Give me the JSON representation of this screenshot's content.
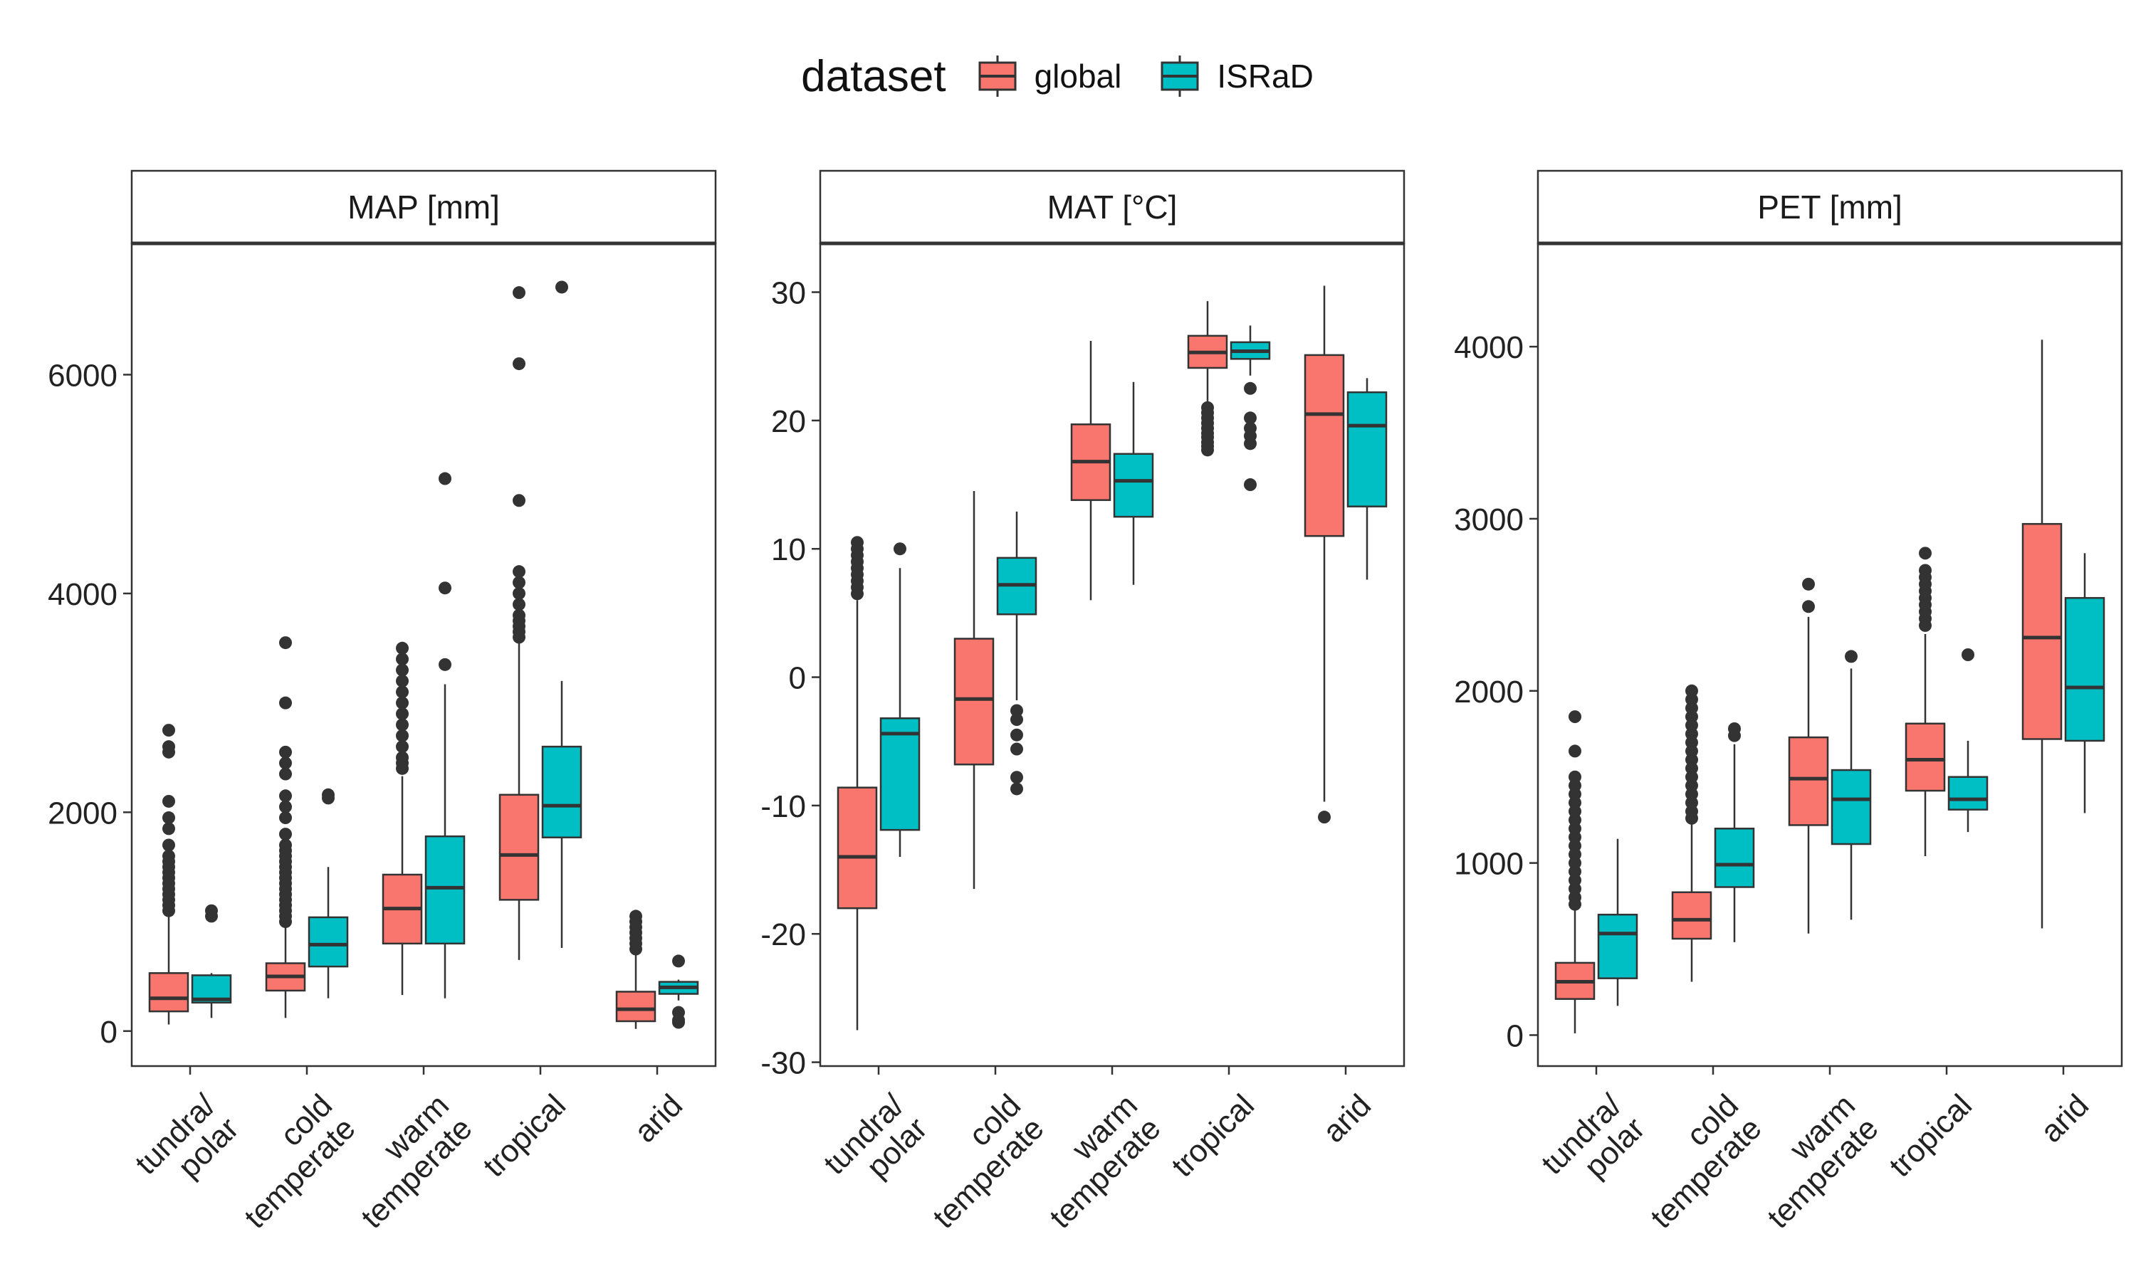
{
  "chart_data": {
    "type": "boxplot",
    "legend": {
      "title": "dataset",
      "position": "top",
      "entries": [
        {
          "name": "global",
          "color": "#F8766D"
        },
        {
          "name": "ISRaD",
          "color": "#00BFC4"
        }
      ]
    },
    "categories": [
      {
        "id": "tundra_polar",
        "lines": [
          "tundra/",
          "polar"
        ]
      },
      {
        "id": "cold_temperate",
        "lines": [
          "cold",
          "temperate"
        ]
      },
      {
        "id": "warm_temperate",
        "lines": [
          "warm",
          "temperate"
        ]
      },
      {
        "id": "tropical",
        "lines": [
          "tropical"
        ]
      },
      {
        "id": "arid",
        "lines": [
          "arid"
        ]
      }
    ],
    "panels": [
      {
        "title": "MAP [mm]",
        "ylim": [
          -320,
          7200
        ],
        "yticks": [
          0,
          2000,
          4000,
          6000
        ],
        "tick_labels": [
          "0",
          "2000",
          "4000",
          "6000"
        ],
        "series": [
          {
            "name": "global",
            "boxes": [
              {
                "min": 60,
                "q1": 180,
                "median": 300,
                "q3": 530,
                "max": 1050,
                "outliers": [
                  1100,
                  1150,
                  1200,
                  1250,
                  1300,
                  1350,
                  1400,
                  1450,
                  1500,
                  1550,
                  1600,
                  1700,
                  1850,
                  1950,
                  2100,
                  2550,
                  2600,
                  2750
                ]
              },
              {
                "min": 120,
                "q1": 370,
                "median": 500,
                "q3": 620,
                "max": 960,
                "outliers": [
                  1000,
                  1050,
                  1100,
                  1150,
                  1200,
                  1250,
                  1300,
                  1350,
                  1400,
                  1450,
                  1500,
                  1550,
                  1600,
                  1650,
                  1700,
                  1800,
                  1950,
                  2050,
                  2150,
                  2350,
                  2450,
                  2550,
                  3000,
                  3550
                ]
              },
              {
                "min": 330,
                "q1": 800,
                "median": 1120,
                "q3": 1430,
                "max": 2330,
                "outliers": [
                  2400,
                  2450,
                  2500,
                  2600,
                  2700,
                  2800,
                  2900,
                  3000,
                  3100,
                  3200,
                  3300,
                  3400,
                  3500
                ]
              },
              {
                "min": 650,
                "q1": 1200,
                "median": 1610,
                "q3": 2160,
                "max": 3550,
                "outliers": [
                  3600,
                  3650,
                  3700,
                  3750,
                  3800,
                  3900,
                  4000,
                  4100,
                  4200,
                  4850,
                  6100,
                  6750
                ]
              },
              {
                "min": 20,
                "q1": 90,
                "median": 200,
                "q3": 360,
                "max": 700,
                "outliers": [
                  750,
                  800,
                  850,
                  900,
                  950,
                  1000,
                  1050
                ]
              }
            ]
          },
          {
            "name": "ISRaD",
            "boxes": [
              {
                "min": 120,
                "q1": 260,
                "median": 290,
                "q3": 510,
                "max": 530,
                "outliers": [
                  1050,
                  1100
                ]
              },
              {
                "min": 300,
                "q1": 590,
                "median": 790,
                "q3": 1040,
                "max": 1500,
                "outliers": [
                  2130,
                  2160
                ]
              },
              {
                "min": 300,
                "q1": 800,
                "median": 1310,
                "q3": 1780,
                "max": 3170,
                "outliers": [
                  3350,
                  4050,
                  5050
                ]
              },
              {
                "min": 760,
                "q1": 1770,
                "median": 2060,
                "q3": 2600,
                "max": 3200,
                "outliers": [
                  6800
                ]
              },
              {
                "min": 280,
                "q1": 340,
                "median": 400,
                "q3": 450,
                "max": 470,
                "outliers": [
                  80,
                  100,
                  170,
                  640
                ]
              }
            ]
          }
        ]
      },
      {
        "title": "MAT [°C]",
        "ylim": [
          -30.3,
          33.8
        ],
        "yticks": [
          -30,
          -20,
          -10,
          0,
          10,
          20,
          30
        ],
        "tick_labels": [
          "-30",
          "-20",
          "-10",
          "0",
          "10",
          "20",
          "30"
        ],
        "series": [
          {
            "name": "global",
            "boxes": [
              {
                "min": -27.5,
                "q1": -18,
                "median": -14,
                "q3": -8.6,
                "max": 6,
                "outliers": [
                  6.5,
                  7,
                  7.5,
                  8,
                  8.5,
                  9,
                  9.5,
                  10,
                  10.5
                ]
              },
              {
                "min": -16.5,
                "q1": -6.8,
                "median": -1.7,
                "q3": 3,
                "max": 14.5,
                "outliers": []
              },
              {
                "min": 6,
                "q1": 13.8,
                "median": 16.8,
                "q3": 19.7,
                "max": 26.2,
                "outliers": []
              },
              {
                "min": 21.2,
                "q1": 24.1,
                "median": 25.3,
                "q3": 26.6,
                "max": 29.3,
                "outliers": [
                  17.7,
                  18,
                  18.3,
                  18.7,
                  19,
                  19.4,
                  19.8,
                  20.2,
                  20.6,
                  21
                ]
              },
              {
                "min": -9.7,
                "q1": 11,
                "median": 20.5,
                "q3": 25.1,
                "max": 30.5,
                "outliers": [
                  -10.9
                ]
              }
            ]
          },
          {
            "name": "ISRaD",
            "boxes": [
              {
                "min": -14,
                "q1": -11.9,
                "median": -4.4,
                "q3": -3.2,
                "max": 8.5,
                "outliers": [
                  10
                ]
              },
              {
                "min": -1.8,
                "q1": 4.9,
                "median": 7.2,
                "q3": 9.3,
                "max": 12.9,
                "outliers": [
                  -8.7,
                  -7.8,
                  -5.6,
                  -4.5,
                  -3.3,
                  -2.6
                ]
              },
              {
                "min": 7.2,
                "q1": 12.5,
                "median": 15.3,
                "q3": 17.4,
                "max": 23,
                "outliers": []
              },
              {
                "min": 23.5,
                "q1": 24.8,
                "median": 25.4,
                "q3": 26.1,
                "max": 27.4,
                "outliers": [
                  15,
                  18.2,
                  18.8,
                  19.4,
                  20.2,
                  22.5
                ]
              },
              {
                "min": 7.6,
                "q1": 13.3,
                "median": 19.6,
                "q3": 22.2,
                "max": 23.3,
                "outliers": []
              }
            ]
          }
        ]
      },
      {
        "title": "PET [mm]",
        "ylim": [
          -180,
          4600
        ],
        "yticks": [
          0,
          1000,
          2000,
          3000,
          4000
        ],
        "tick_labels": [
          "0",
          "1000",
          "2000",
          "3000",
          "4000"
        ],
        "series": [
          {
            "name": "global",
            "boxes": [
              {
                "min": 10,
                "q1": 210,
                "median": 310,
                "q3": 420,
                "max": 740,
                "outliers": [
                  760,
                  800,
                  850,
                  900,
                  950,
                  1000,
                  1050,
                  1100,
                  1150,
                  1200,
                  1250,
                  1300,
                  1350,
                  1400,
                  1450,
                  1500,
                  1650,
                  1850
                ]
              },
              {
                "min": 310,
                "q1": 560,
                "median": 670,
                "q3": 830,
                "max": 1230,
                "outliers": [
                  1260,
                  1300,
                  1350,
                  1400,
                  1450,
                  1500,
                  1550,
                  1600,
                  1650,
                  1700,
                  1750,
                  1800,
                  1850,
                  1900,
                  1950,
                  2000
                ]
              },
              {
                "min": 590,
                "q1": 1220,
                "median": 1490,
                "q3": 1730,
                "max": 2430,
                "outliers": [
                  2490,
                  2620
                ]
              },
              {
                "min": 1040,
                "q1": 1420,
                "median": 1600,
                "q3": 1810,
                "max": 2330,
                "outliers": [
                  2380,
                  2420,
                  2460,
                  2500,
                  2540,
                  2580,
                  2620,
                  2660,
                  2700,
                  2800
                ]
              },
              {
                "min": 620,
                "q1": 1720,
                "median": 2310,
                "q3": 2970,
                "max": 4040,
                "outliers": []
              }
            ]
          },
          {
            "name": "ISRaD",
            "boxes": [
              {
                "min": 170,
                "q1": 330,
                "median": 590,
                "q3": 700,
                "max": 1140,
                "outliers": []
              },
              {
                "min": 540,
                "q1": 860,
                "median": 990,
                "q3": 1200,
                "max": 1690,
                "outliers": [
                  1740,
                  1780
                ]
              },
              {
                "min": 670,
                "q1": 1110,
                "median": 1370,
                "q3": 1540,
                "max": 2130,
                "outliers": [
                  2200
                ]
              },
              {
                "min": 1180,
                "q1": 1310,
                "median": 1370,
                "q3": 1500,
                "max": 1710,
                "outliers": [
                  2210
                ]
              },
              {
                "min": 1290,
                "q1": 1710,
                "median": 2020,
                "q3": 2540,
                "max": 2800,
                "outliers": []
              }
            ]
          }
        ]
      }
    ]
  }
}
